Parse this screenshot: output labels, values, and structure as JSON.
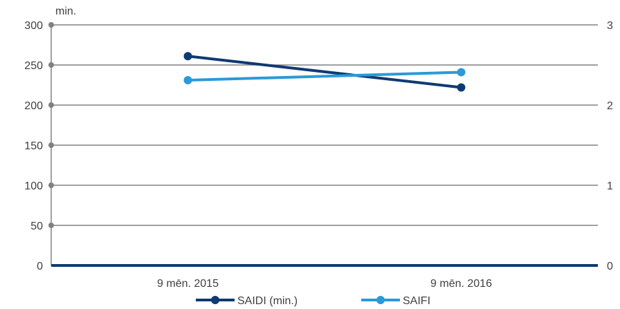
{
  "chart_data": {
    "type": "line",
    "categories": [
      "9 mēn. 2015",
      "9 mēn. 2016"
    ],
    "series": [
      {
        "name": "SAIDI (min.)",
        "axis": "left",
        "values": [
          261,
          222
        ],
        "color": "#0f3a72"
      },
      {
        "name": "SAIFI",
        "axis": "right",
        "values": [
          2.31,
          2.41
        ],
        "color": "#2a9ad8"
      }
    ],
    "y_left": {
      "unit_label": "min.",
      "ylim": [
        0,
        300
      ],
      "ticks": [
        0,
        50,
        100,
        150,
        200,
        250,
        300
      ]
    },
    "y_right": {
      "ylim": [
        0,
        3
      ],
      "ticks": [
        0,
        1,
        2,
        3
      ]
    },
    "grid": true,
    "legend": "bottom-center",
    "colors": {
      "grid": "#808080",
      "baseline": "#0f3a72",
      "text": "#404040"
    }
  }
}
